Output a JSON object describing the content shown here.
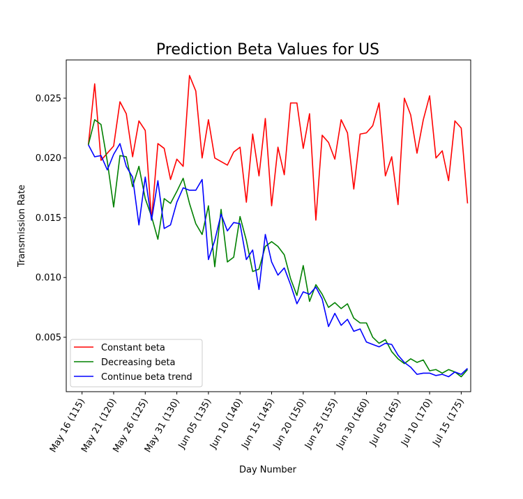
{
  "chart_data": {
    "type": "line",
    "title": "Prediction Beta Values for US",
    "xlabel": "Day Number",
    "ylabel": "Transmission Rate",
    "xlim": [
      112.5,
      176.5
    ],
    "ylim": [
      0.00045,
      0.0282
    ],
    "x_ticks": [
      115,
      120,
      125,
      130,
      135,
      140,
      145,
      150,
      155,
      160,
      165,
      170,
      175
    ],
    "x_tick_labels": [
      "May 16 (115)",
      "May 21 (120)",
      "May 26 (125)",
      "May 31 (130)",
      "Jun 05 (135)",
      "Jun 10 (140)",
      "Jun 15 (145)",
      "Jun 20 (150)",
      "Jun 25 (155)",
      "Jun 30 (160)",
      "Jul 05 (165)",
      "Jul 10 (170)",
      "Jul 15 (175)"
    ],
    "y_ticks": [
      0.005,
      0.01,
      0.015,
      0.02,
      0.025
    ],
    "y_tick_labels": [
      "0.005",
      "0.010",
      "0.015",
      "0.020",
      "0.025"
    ],
    "grid": false,
    "legend_position": "lower-left",
    "x": [
      116,
      117,
      118,
      119,
      120,
      121,
      122,
      123,
      124,
      125,
      126,
      127,
      128,
      129,
      130,
      131,
      132,
      133,
      134,
      135,
      136,
      137,
      138,
      139,
      140,
      141,
      142,
      143,
      144,
      145,
      146,
      147,
      148,
      149,
      150,
      151,
      152,
      153,
      154,
      155,
      156,
      157,
      158,
      159,
      160,
      161,
      162,
      163,
      164,
      165,
      166,
      167,
      168,
      169,
      170,
      171,
      172,
      173,
      174,
      175,
      176
    ],
    "series": [
      {
        "name": "Constant beta",
        "color": "#ff0000",
        "values": [
          0.0211,
          0.0262,
          0.0198,
          0.0204,
          0.021,
          0.0247,
          0.0237,
          0.0201,
          0.0231,
          0.0223,
          0.0148,
          0.0212,
          0.0208,
          0.0182,
          0.0199,
          0.0193,
          0.0269,
          0.0256,
          0.02,
          0.0232,
          0.02,
          0.0197,
          0.0194,
          0.0205,
          0.0209,
          0.0163,
          0.022,
          0.0185,
          0.0233,
          0.016,
          0.0209,
          0.0186,
          0.0246,
          0.0246,
          0.0208,
          0.0237,
          0.0148,
          0.0219,
          0.0213,
          0.0199,
          0.0232,
          0.0221,
          0.0174,
          0.022,
          0.0221,
          0.0227,
          0.0246,
          0.0185,
          0.0201,
          0.0161,
          0.025,
          0.0236,
          0.0204,
          0.0232,
          0.0252,
          0.02,
          0.0206,
          0.0181,
          0.0231,
          0.0225,
          0.0162
        ]
      },
      {
        "name": "Decreasing beta",
        "color": "#008000",
        "values": [
          0.0211,
          0.0232,
          0.0228,
          0.0197,
          0.0159,
          0.0202,
          0.0201,
          0.0176,
          0.0193,
          0.0166,
          0.0151,
          0.0132,
          0.0166,
          0.0162,
          0.0172,
          0.0183,
          0.0162,
          0.0145,
          0.0136,
          0.016,
          0.0109,
          0.0157,
          0.0113,
          0.0117,
          0.0151,
          0.0131,
          0.0105,
          0.0107,
          0.0126,
          0.013,
          0.0126,
          0.0119,
          0.0099,
          0.0085,
          0.011,
          0.008,
          0.0094,
          0.0086,
          0.0075,
          0.0079,
          0.0074,
          0.0078,
          0.0066,
          0.0062,
          0.0062,
          0.005,
          0.0045,
          0.0048,
          0.0038,
          0.0032,
          0.0028,
          0.0032,
          0.0029,
          0.0031,
          0.0022,
          0.0023,
          0.002,
          0.0023,
          0.0021,
          0.0017,
          0.0023
        ]
      },
      {
        "name": "Continue beta trend",
        "color": "#0000ff",
        "values": [
          0.0211,
          0.0201,
          0.0202,
          0.019,
          0.0203,
          0.0212,
          0.0193,
          0.0184,
          0.0144,
          0.0184,
          0.0148,
          0.0181,
          0.0141,
          0.0144,
          0.0163,
          0.0175,
          0.0173,
          0.0173,
          0.0182,
          0.0115,
          0.0131,
          0.0153,
          0.0139,
          0.0146,
          0.0145,
          0.0115,
          0.0123,
          0.009,
          0.0136,
          0.0113,
          0.0102,
          0.0108,
          0.0094,
          0.0078,
          0.0088,
          0.0086,
          0.0092,
          0.0082,
          0.0059,
          0.007,
          0.006,
          0.0065,
          0.0055,
          0.0057,
          0.0046,
          0.0044,
          0.0042,
          0.0045,
          0.0044,
          0.0035,
          0.0029,
          0.0025,
          0.0019,
          0.002,
          0.002,
          0.0018,
          0.0019,
          0.0017,
          0.0021,
          0.0019,
          0.0024
        ]
      }
    ]
  }
}
